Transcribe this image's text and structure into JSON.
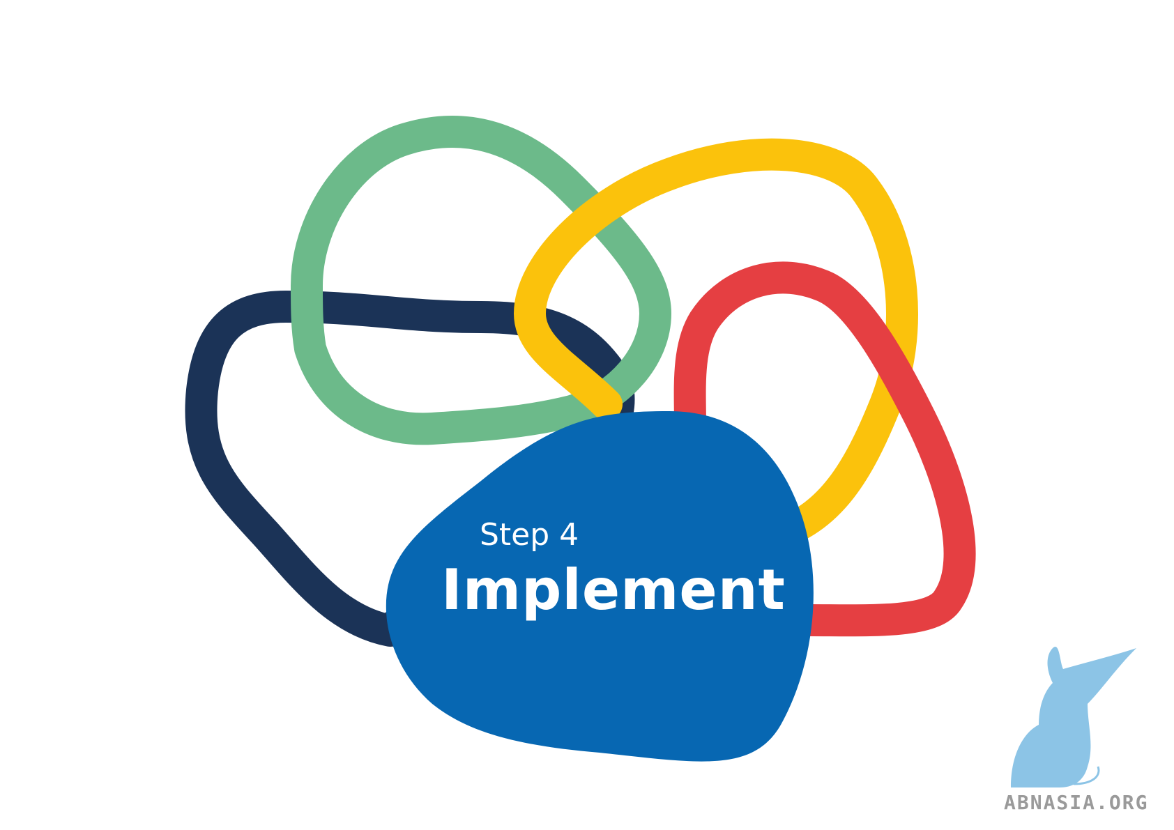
{
  "step": {
    "label": "Step 4",
    "title": "Implement"
  },
  "watermark": {
    "text": "ABNASIA.ORG"
  },
  "colors": {
    "navy": "#1b3357",
    "green": "#6cba8a",
    "yellow": "#fbc20c",
    "red": "#e53f42",
    "blue": "#0767b2",
    "watermark_blue": "#8cc4e6",
    "watermark_gray": "#9a9a9a"
  }
}
